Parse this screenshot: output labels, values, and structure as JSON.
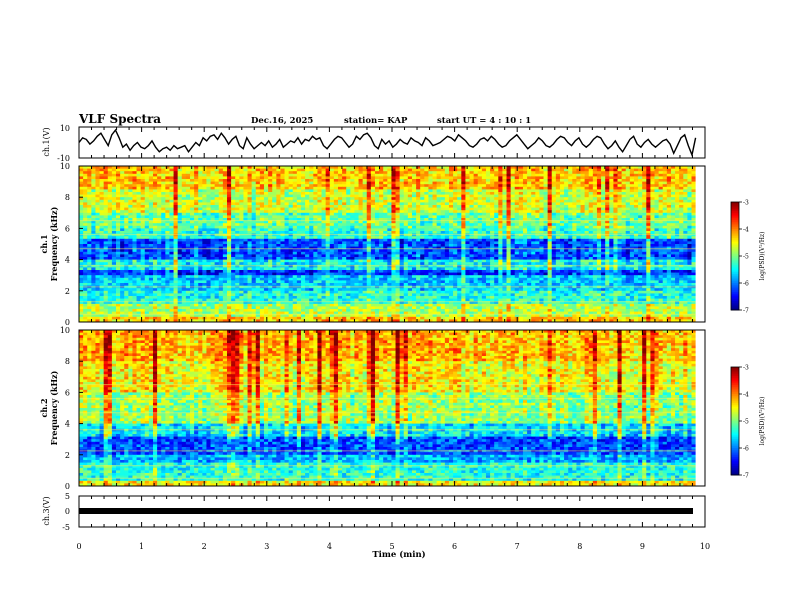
{
  "header": {
    "title": "VLF Spectra",
    "date": "Dec.16, 2025",
    "station": "station= KAP",
    "start_ut": "start  UT =  4 : 10 : 1"
  },
  "chart_data": [
    {
      "type": "line",
      "panel": "ch1-waveform",
      "ylabel": "ch.1(V)",
      "ylim": [
        -10,
        10
      ],
      "yticks": [
        10,
        -10
      ],
      "description_series": "envelope amplitude vs time",
      "series": [
        {
          "name": "ch.1",
          "x_range_min": [
            0,
            9.85
          ],
          "values": [
            0,
            3,
            2,
            -1,
            1,
            4,
            6,
            2,
            -2,
            5,
            8,
            3,
            -3,
            -1,
            -5,
            -2,
            0,
            -3,
            -4,
            -2,
            1,
            -3,
            -6,
            -4,
            -3,
            -5,
            -2,
            -4,
            -3,
            -2,
            -6,
            -3,
            0,
            -2,
            3,
            1,
            4,
            5,
            2,
            6,
            3,
            -1,
            2,
            4,
            -2,
            -4,
            3,
            -1,
            -4,
            -2,
            0,
            -2,
            1,
            -3,
            -1,
            2,
            -3,
            -1,
            1,
            0,
            3,
            -1,
            2,
            1,
            4,
            2,
            3,
            -2,
            -4,
            -1,
            2,
            4,
            3,
            0,
            -3,
            -1,
            4,
            2,
            5,
            6,
            3,
            -2,
            -4,
            2,
            -1,
            1,
            -3,
            -1,
            2,
            0,
            -1,
            3,
            1,
            0,
            -2,
            3,
            1,
            -2,
            -1,
            0,
            2,
            4,
            3,
            1,
            5,
            3,
            1,
            -2,
            -3,
            -1,
            2,
            3,
            1,
            4,
            2,
            -1,
            -3,
            -2,
            1,
            3,
            5,
            2,
            -1,
            -4,
            -2,
            0,
            3,
            1,
            -2,
            -3,
            -1,
            2,
            4,
            3,
            0,
            -2,
            1,
            3,
            -1,
            -3,
            -1,
            2,
            4,
            3,
            -1,
            -4,
            -2,
            1,
            -3,
            -6,
            -2,
            2,
            4,
            -1,
            -3,
            0,
            2,
            -1,
            -3,
            -1,
            1,
            2,
            -1,
            -7,
            -2,
            3,
            5,
            -2,
            -8,
            3
          ]
        }
      ]
    },
    {
      "type": "heatmap",
      "panel": "ch1-spectrogram",
      "ylabel_top": "ch.1",
      "ylabel": "Frequency (kHz)",
      "ylim": [
        0,
        10
      ],
      "yticks": [
        0,
        2,
        4,
        6,
        8,
        10
      ],
      "colorbar": {
        "label": "log(PSD)(V²/Hz)",
        "range": [
          -7,
          -3
        ],
        "ticks": [
          -3,
          -4,
          -5,
          -6,
          -7
        ]
      },
      "band_levels_by_freq_kHz": [
        {
          "f": [
            0.0,
            0.4
          ],
          "level": -4.3
        },
        {
          "f": [
            0.4,
            1.2
          ],
          "level": -4.8
        },
        {
          "f": [
            1.2,
            2.0
          ],
          "level": -5.4
        },
        {
          "f": [
            2.0,
            3.0
          ],
          "level": -5.7
        },
        {
          "f": [
            3.0,
            3.4
          ],
          "level": -6.3
        },
        {
          "f": [
            3.4,
            4.0
          ],
          "level": -5.5
        },
        {
          "f": [
            4.0,
            5.4
          ],
          "level": -6.2
        },
        {
          "f": [
            5.4,
            6.0
          ],
          "level": -5.3
        },
        {
          "f": [
            6.0,
            7.0
          ],
          "level": -5.1
        },
        {
          "f": [
            7.0,
            8.5
          ],
          "level": -4.7
        },
        {
          "f": [
            8.5,
            10.0
          ],
          "level": -4.3
        }
      ]
    },
    {
      "type": "heatmap",
      "panel": "ch2-spectrogram",
      "ylabel_top": "ch.2",
      "ylabel": "Frequency (kHz)",
      "ylim": [
        0,
        10
      ],
      "yticks": [
        0,
        2,
        4,
        6,
        8,
        10
      ],
      "colorbar": {
        "label": "log(PSD)(V²/Hz)",
        "range": [
          -7,
          -3
        ],
        "ticks": [
          -3,
          -4,
          -5,
          -6,
          -7
        ]
      },
      "band_levels_by_freq_kHz": [
        {
          "f": [
            0.0,
            0.3
          ],
          "level": -4.5
        },
        {
          "f": [
            0.3,
            1.5
          ],
          "level": -5.4
        },
        {
          "f": [
            1.5,
            2.0
          ],
          "level": -5.8
        },
        {
          "f": [
            2.0,
            3.2
          ],
          "level": -6.2
        },
        {
          "f": [
            3.2,
            4.0
          ],
          "level": -5.6
        },
        {
          "f": [
            4.0,
            6.0
          ],
          "level": -4.9
        },
        {
          "f": [
            6.0,
            8.0
          ],
          "level": -4.5
        },
        {
          "f": [
            8.0,
            10.0
          ],
          "level": -4.2
        }
      ]
    },
    {
      "type": "line",
      "panel": "ch3-waveform",
      "ylabel": "ch.3(V)",
      "ylim": [
        -5,
        5
      ],
      "yticks": [
        5,
        0,
        -5
      ],
      "series": [
        {
          "name": "ch.3",
          "x_range_min": [
            0,
            9.85
          ],
          "constant_value": 0
        }
      ]
    }
  ],
  "xaxis": {
    "label": "Time  (min)",
    "range": [
      0,
      10
    ],
    "ticks": [
      "0",
      "1",
      "2",
      "3",
      "4",
      "5",
      "6",
      "7",
      "8",
      "9",
      "10"
    ]
  }
}
